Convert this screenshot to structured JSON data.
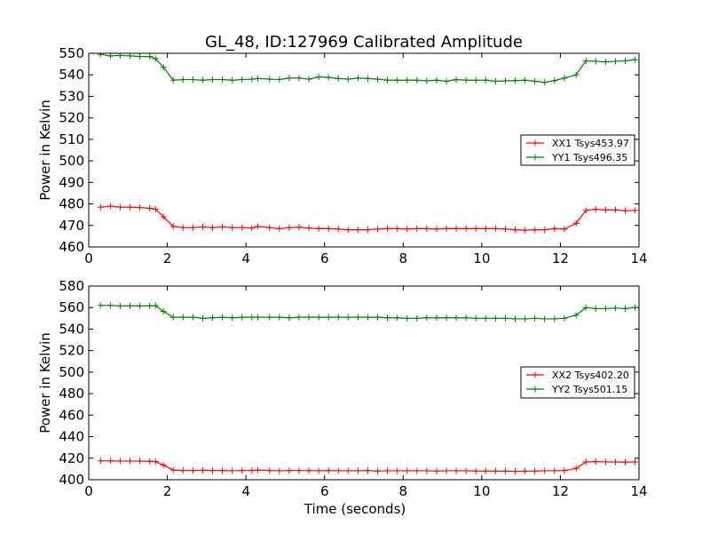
{
  "title": "GL_48, ID:127969 Calibrated Amplitude",
  "colors": {
    "xx": "#ff0000",
    "yy": "#008000"
  },
  "chart_data": [
    {
      "type": "line",
      "xlabel": "",
      "ylabel": "Power in Kelvin",
      "xlim": [
        0,
        14
      ],
      "ylim": [
        460,
        550
      ],
      "xticks": [
        0,
        2,
        4,
        6,
        8,
        10,
        12,
        14
      ],
      "yticks": [
        460,
        470,
        480,
        490,
        500,
        510,
        520,
        530,
        540,
        550
      ],
      "legend_position": "center-right",
      "x": [
        0.3,
        0.55,
        0.8,
        1.05,
        1.3,
        1.55,
        1.7,
        1.9,
        2.15,
        2.4,
        2.65,
        2.9,
        3.15,
        3.4,
        3.65,
        3.9,
        4.15,
        4.3,
        4.6,
        4.85,
        5.1,
        5.35,
        5.6,
        5.85,
        6.1,
        6.35,
        6.6,
        6.85,
        7.1,
        7.35,
        7.6,
        7.85,
        8.1,
        8.35,
        8.6,
        8.85,
        9.1,
        9.35,
        9.6,
        9.85,
        10.1,
        10.35,
        10.6,
        10.85,
        11.1,
        11.35,
        11.6,
        11.85,
        12.1,
        12.4,
        12.65,
        12.9,
        13.15,
        13.4,
        13.65,
        13.9
      ],
      "series": [
        {
          "name": "XX1 Tsys453.97",
          "color": "#ff0000",
          "values": [
            478.5,
            479.0,
            478.5,
            478.5,
            478.3,
            478.0,
            477.5,
            474.0,
            469.5,
            469.0,
            469.0,
            469.3,
            469.0,
            469.3,
            469.0,
            469.0,
            468.8,
            469.5,
            469.0,
            468.5,
            469.0,
            469.2,
            468.8,
            468.5,
            468.5,
            468.3,
            468.0,
            468.0,
            468.0,
            468.3,
            468.5,
            468.5,
            468.3,
            468.5,
            468.5,
            468.3,
            468.5,
            468.5,
            468.5,
            468.5,
            468.5,
            468.5,
            468.3,
            468.0,
            467.8,
            468.0,
            468.0,
            468.5,
            468.3,
            471.0,
            477.0,
            477.5,
            477.2,
            477.3,
            476.8,
            477.0
          ]
        },
        {
          "name": "YY1 Tsys496.35",
          "color": "#008000",
          "values": [
            549.5,
            548.8,
            549.0,
            548.8,
            548.5,
            548.5,
            547.5,
            543.5,
            537.5,
            537.8,
            537.8,
            537.5,
            537.8,
            537.8,
            537.5,
            537.8,
            538.0,
            538.3,
            538.0,
            537.8,
            538.5,
            538.5,
            538.0,
            539.0,
            538.8,
            538.3,
            538.0,
            538.5,
            538.3,
            538.0,
            537.5,
            537.5,
            537.5,
            537.5,
            537.2,
            537.5,
            537.0,
            537.8,
            537.5,
            537.5,
            537.5,
            537.0,
            537.2,
            537.3,
            537.5,
            537.0,
            536.5,
            537.3,
            538.5,
            540.0,
            546.5,
            546.3,
            546.0,
            546.3,
            546.5,
            547.0
          ]
        }
      ]
    },
    {
      "type": "line",
      "xlabel": "Time (seconds)",
      "ylabel": "Power in Kelvin",
      "xlim": [
        0,
        14
      ],
      "ylim": [
        400,
        580
      ],
      "xticks": [
        0,
        2,
        4,
        6,
        8,
        10,
        12,
        14
      ],
      "yticks": [
        400,
        420,
        440,
        460,
        480,
        500,
        520,
        540,
        560,
        580
      ],
      "legend_position": "center-right",
      "x": [
        0.3,
        0.55,
        0.8,
        1.05,
        1.3,
        1.55,
        1.7,
        1.9,
        2.15,
        2.4,
        2.65,
        2.9,
        3.15,
        3.4,
        3.65,
        3.9,
        4.15,
        4.3,
        4.6,
        4.85,
        5.1,
        5.35,
        5.6,
        5.85,
        6.1,
        6.35,
        6.6,
        6.85,
        7.1,
        7.35,
        7.6,
        7.85,
        8.1,
        8.35,
        8.6,
        8.85,
        9.1,
        9.35,
        9.6,
        9.85,
        10.1,
        10.35,
        10.6,
        10.85,
        11.1,
        11.35,
        11.6,
        11.85,
        12.1,
        12.4,
        12.65,
        12.9,
        13.15,
        13.4,
        13.65,
        13.9
      ],
      "series": [
        {
          "name": "XX2 Tsys402.20",
          "color": "#ff0000",
          "values": [
            417.5,
            417.5,
            417.3,
            417.3,
            417.3,
            417.0,
            416.8,
            413.5,
            409.0,
            408.5,
            408.5,
            408.8,
            408.5,
            408.5,
            408.3,
            408.5,
            408.5,
            409.0,
            408.5,
            408.3,
            408.5,
            408.5,
            408.5,
            408.3,
            408.5,
            408.3,
            408.3,
            408.3,
            408.5,
            408.0,
            408.3,
            408.3,
            408.3,
            408.3,
            408.3,
            408.0,
            408.3,
            408.3,
            408.3,
            408.0,
            408.0,
            408.0,
            408.0,
            407.8,
            408.0,
            408.0,
            408.3,
            408.3,
            408.5,
            410.5,
            416.5,
            416.8,
            416.5,
            416.5,
            416.3,
            416.5
          ]
        },
        {
          "name": "YY2 Tsys501.15",
          "color": "#008000",
          "values": [
            562.0,
            562.0,
            561.5,
            561.5,
            561.5,
            561.5,
            561.8,
            556.5,
            551.0,
            551.0,
            551.0,
            550.0,
            550.5,
            551.0,
            550.5,
            551.0,
            551.0,
            551.0,
            551.0,
            551.0,
            550.5,
            551.0,
            551.0,
            551.0,
            551.0,
            551.0,
            551.0,
            551.0,
            551.0,
            551.0,
            550.5,
            550.5,
            550.0,
            550.0,
            550.5,
            550.5,
            550.5,
            550.5,
            550.5,
            550.0,
            550.0,
            550.0,
            550.0,
            549.5,
            549.5,
            550.0,
            549.5,
            549.5,
            550.0,
            553.0,
            560.0,
            559.0,
            559.0,
            559.5,
            559.0,
            560.0
          ]
        }
      ]
    }
  ]
}
